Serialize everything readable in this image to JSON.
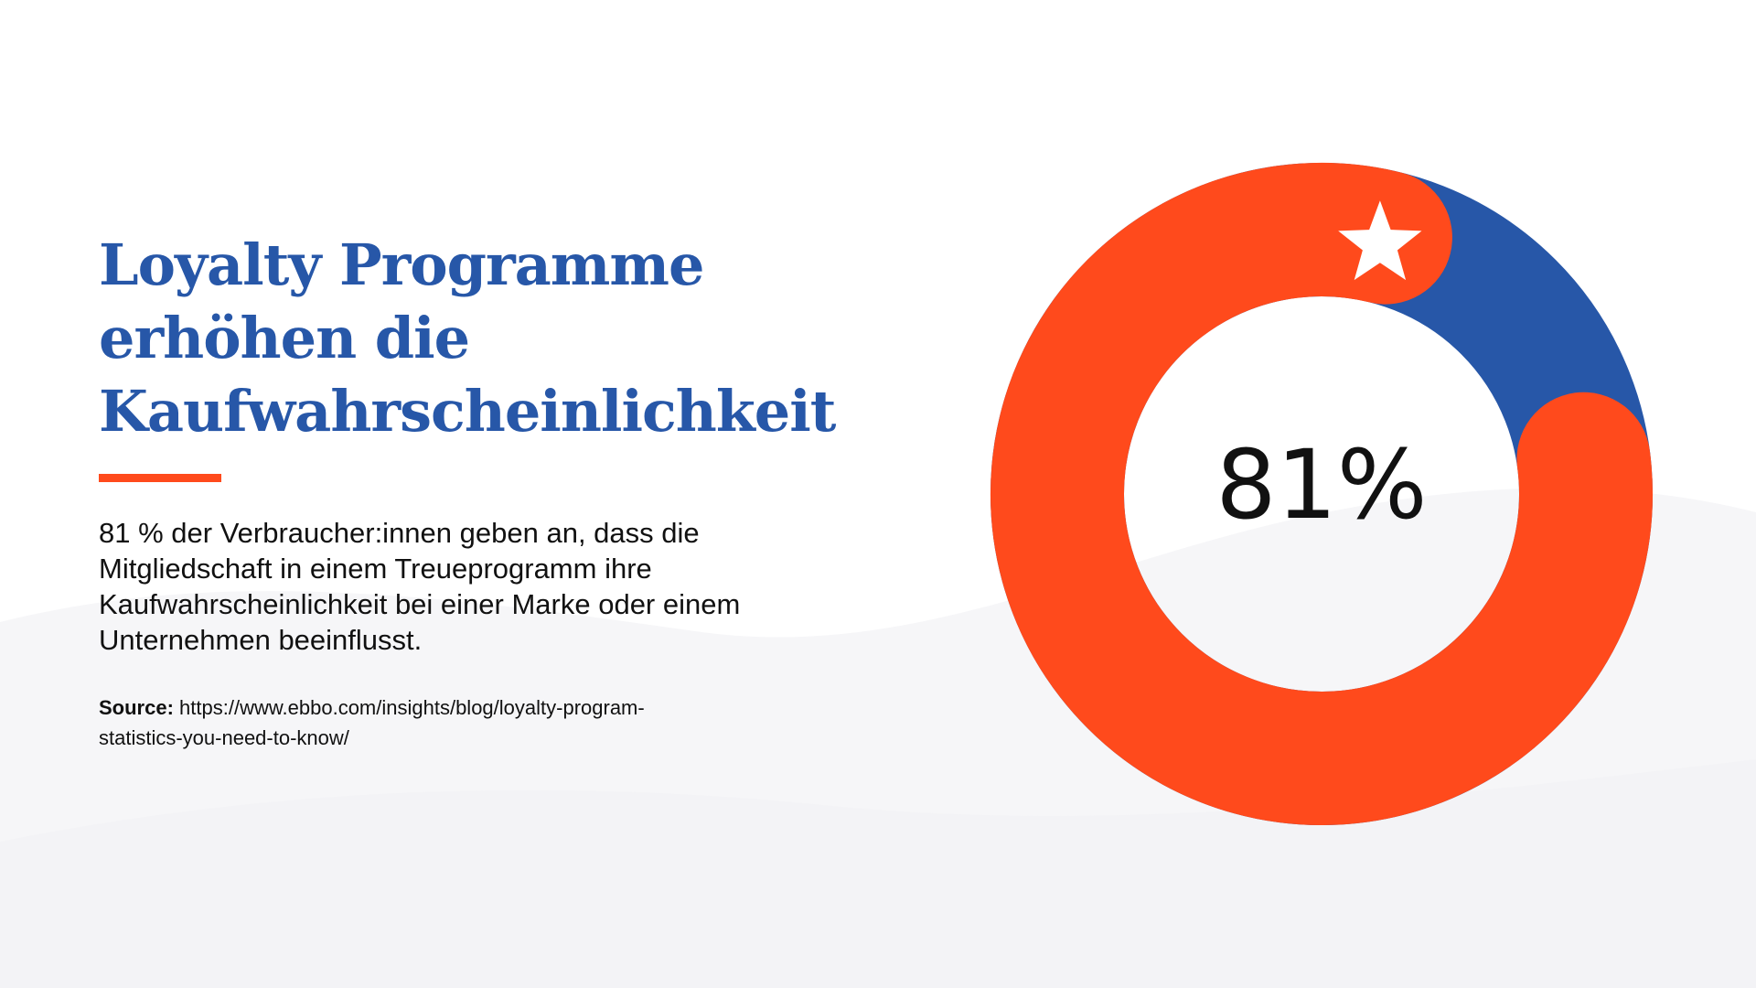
{
  "title_lines": [
    "Loyalty Programme",
    "erhöhen die",
    "Kaufwahrscheinlichkeit"
  ],
  "body": "81 % der Verbraucher:innen geben an, dass die Mitgliedschaft in einem Treueprogramm ihre Kaufwahrscheinlichkeit bei einer Marke oder einem Unternehmen beeinflusst.",
  "source_label": "Source:",
  "source_url": "https://www.ebbo.com/insights/blog/loyalty-program-statistics-you-need-to-know/",
  "colors": {
    "title": "#2757a8",
    "accent": "#ff4a1c",
    "remainder": "#2757a8",
    "highlight": "#ff4a1c",
    "text": "#111111"
  },
  "chart_data": {
    "type": "pie",
    "style": "donut",
    "center_label": "81%",
    "slices": [
      {
        "value": 81,
        "color": "#ff4a1c"
      },
      {
        "value": 19,
        "color": "#2757a8"
      }
    ],
    "marker_icon": "star-icon"
  }
}
